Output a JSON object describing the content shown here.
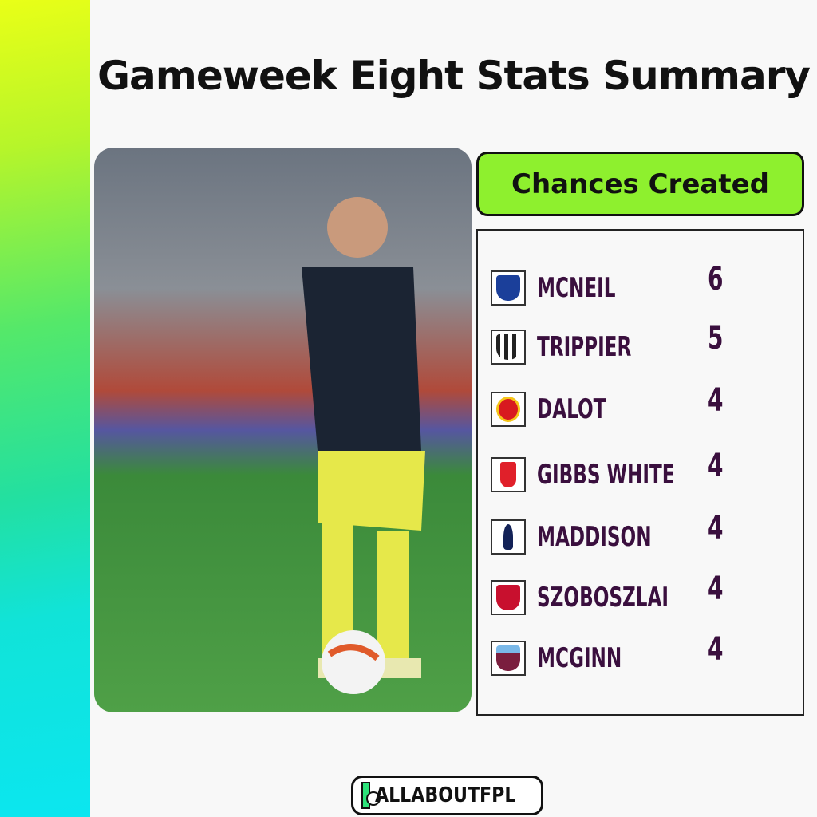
{
  "title": "Gameweek Eight Stats Summary",
  "panel": {
    "header": "Chances Created",
    "rows": [
      {
        "name": "MCNEIL",
        "value": "6",
        "club_icon": "everton-crest-icon",
        "color": "#1b3f9a"
      },
      {
        "name": "TRIPPIER",
        "value": "5",
        "club_icon": "newcastle-crest-icon",
        "color": "#222222"
      },
      {
        "name": "DALOT",
        "value": "4",
        "club_icon": "man-utd-crest-icon",
        "color": "#d8191f"
      },
      {
        "name": "GIBBS WHITE",
        "value": "4",
        "club_icon": "nottingham-forest-crest-icon",
        "color": "#e0202a"
      },
      {
        "name": "MADDISON",
        "value": "4",
        "club_icon": "tottenham-crest-icon",
        "color": "#132257"
      },
      {
        "name": "SZOBOSZLAI",
        "value": "4",
        "club_icon": "liverpool-crest-icon",
        "color": "#c8102e"
      },
      {
        "name": "MCGINN",
        "value": "4",
        "club_icon": "aston-villa-crest-icon",
        "color": "#7ab8e8"
      }
    ]
  },
  "brand": "ALLABOUTFPL",
  "colors": {
    "accent": "#8ef02e",
    "name_text": "#3a0f3e"
  }
}
